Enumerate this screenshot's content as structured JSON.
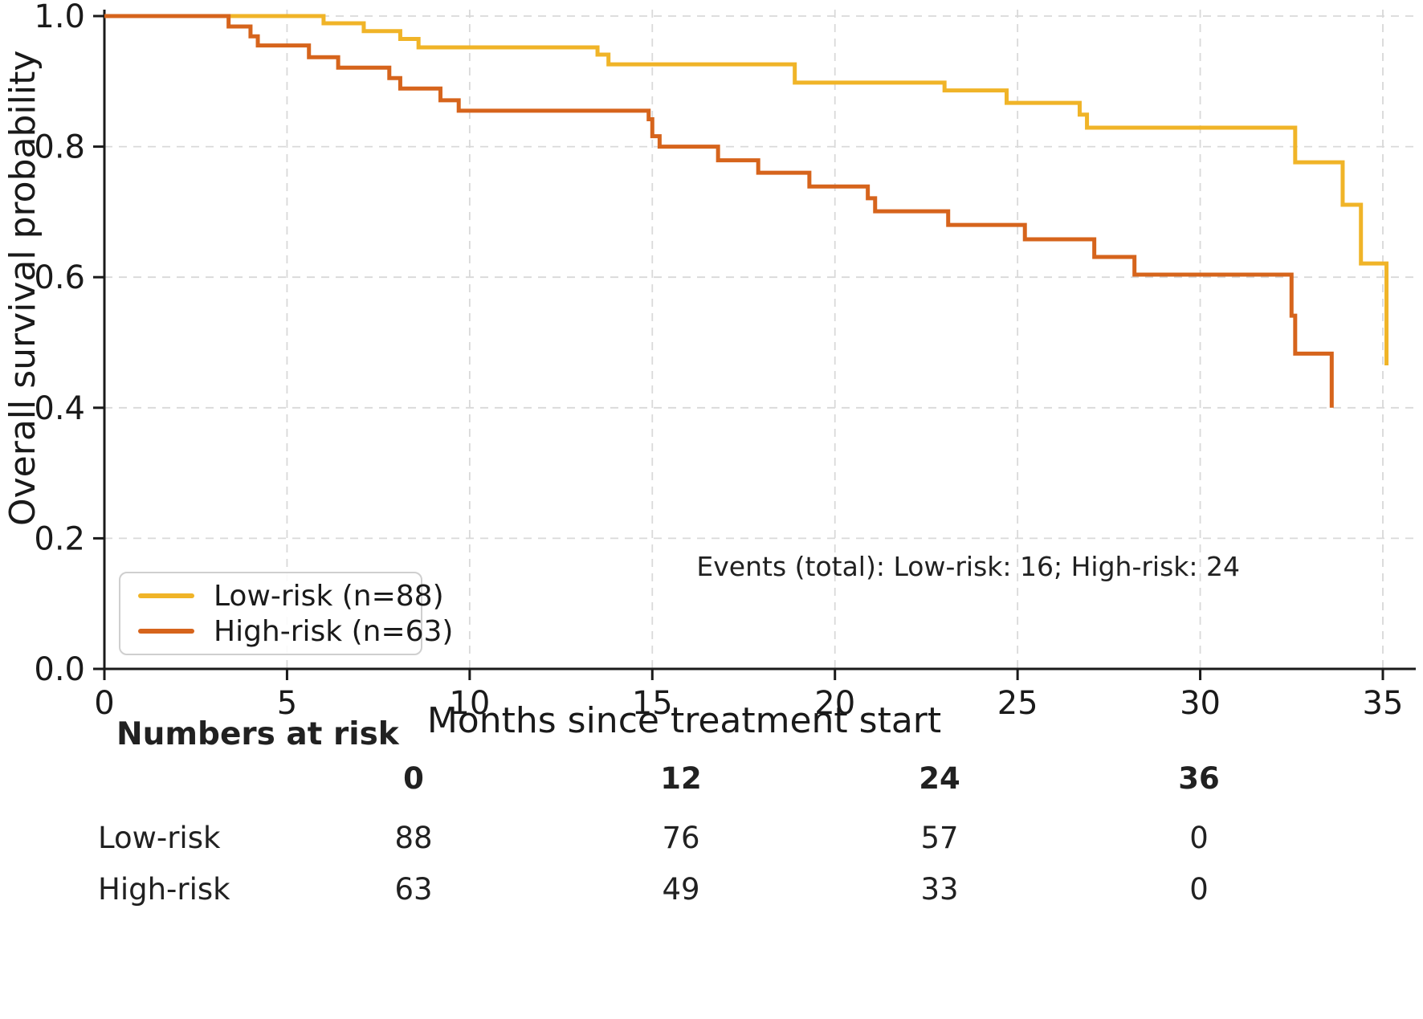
{
  "figure": {
    "y_axis_label": "Overall survival probability",
    "x_axis_label": "Months since treatment start",
    "annotation": "Events (total): Low-risk: 16; High-risk: 24"
  },
  "chart_data": {
    "type": "line",
    "subtype": "kaplan-meier-step-curves",
    "title": "",
    "xlabel": "Months since treatment start",
    "ylabel": "Overall survival probability",
    "xlim": [
      0,
      35.9
    ],
    "ylim": [
      0.0,
      1.0
    ],
    "x_ticks": [
      "0",
      "5",
      "10",
      "15",
      "20",
      "25",
      "30",
      "35"
    ],
    "y_ticks": [
      "0.0",
      "0.2",
      "0.4",
      "0.6",
      "0.8",
      "1.0"
    ],
    "grid": true,
    "legend_position": "lower-left",
    "annotation": "Events (total): Low-risk: 16; High-risk: 24",
    "series": [
      {
        "name": "Low-risk (n=88)",
        "color": "#F0B428",
        "n": 88,
        "events_total": 16,
        "points": [
          [
            0,
            1.0
          ],
          [
            6.0,
            0.989
          ],
          [
            7.1,
            0.977
          ],
          [
            8.1,
            0.965
          ],
          [
            8.6,
            0.952
          ],
          [
            13.5,
            0.941
          ],
          [
            13.8,
            0.926
          ],
          [
            18.9,
            0.898
          ],
          [
            23.0,
            0.886
          ],
          [
            24.7,
            0.867
          ],
          [
            26.7,
            0.849
          ],
          [
            26.9,
            0.829
          ],
          [
            32.6,
            0.776
          ],
          [
            33.9,
            0.711
          ],
          [
            34.4,
            0.621
          ],
          [
            35.1,
            0.465
          ]
        ]
      },
      {
        "name": "High-risk (n=63)",
        "color": "#D6641C",
        "n": 63,
        "events_total": 24,
        "points": [
          [
            0,
            1.0
          ],
          [
            3.4,
            0.984
          ],
          [
            4.0,
            0.969
          ],
          [
            4.2,
            0.955
          ],
          [
            5.6,
            0.937
          ],
          [
            6.4,
            0.921
          ],
          [
            7.8,
            0.905
          ],
          [
            8.1,
            0.889
          ],
          [
            9.2,
            0.871
          ],
          [
            9.7,
            0.855
          ],
          [
            14.9,
            0.842
          ],
          [
            15.0,
            0.816
          ],
          [
            15.2,
            0.8
          ],
          [
            16.8,
            0.779
          ],
          [
            17.9,
            0.76
          ],
          [
            19.3,
            0.739
          ],
          [
            20.9,
            0.721
          ],
          [
            21.1,
            0.701
          ],
          [
            23.1,
            0.68
          ],
          [
            25.2,
            0.658
          ],
          [
            27.1,
            0.631
          ],
          [
            28.2,
            0.604
          ],
          [
            32.5,
            0.541
          ],
          [
            32.6,
            0.483
          ],
          [
            33.6,
            0.4
          ]
        ]
      }
    ]
  },
  "risk_table": {
    "title": "Numbers at risk",
    "time_points": [
      "0",
      "12",
      "24",
      "36"
    ],
    "rows": [
      {
        "label": "Low-risk",
        "values": [
          "88",
          "76",
          "57",
          "0"
        ]
      },
      {
        "label": "High-risk",
        "values": [
          "63",
          "49",
          "33",
          "0"
        ]
      }
    ]
  }
}
